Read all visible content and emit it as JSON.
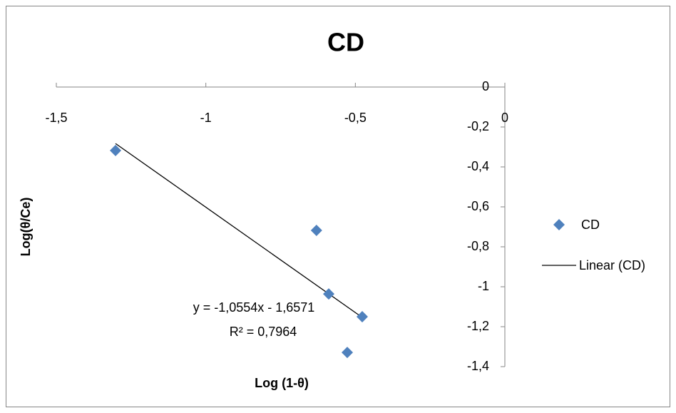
{
  "chart_data": {
    "type": "scatter",
    "title": "CD",
    "x_label": "Log (1-θ)",
    "y_label": "Log(θ/Ce)",
    "series": [
      {
        "name": "CD",
        "color": "#4f81bd",
        "x": [
          -1.302,
          -0.63,
          -0.589,
          -0.477,
          -0.527
        ],
        "values": [
          -0.318,
          -0.718,
          -1.036,
          -1.15,
          -1.329
        ]
      }
    ],
    "trendline": {
      "name": "Linear (CD)",
      "color": "#000000",
      "slope": -1.0554,
      "intercept": -1.6571,
      "equation": "y = -1,0554x - 1,6571",
      "r2_label": "R² = 0,7964"
    },
    "xlim": [
      -1.5,
      0
    ],
    "xticks": [
      {
        "value": -1.5,
        "label": "-1,5"
      },
      -1,
      {
        "value": -0.5,
        "label": "-0,5"
      },
      0
    ],
    "ylim": [
      -1.4,
      0
    ],
    "yticks": [
      0,
      {
        "value": -0.2,
        "label": "-0,2"
      },
      {
        "value": -0.4,
        "label": "-0,4"
      },
      {
        "value": -0.6,
        "label": "-0,6"
      },
      {
        "value": -0.8,
        "label": "-0,8"
      },
      -1,
      {
        "value": -1.2,
        "label": "-1,2"
      },
      {
        "value": -1.4,
        "label": "-1,4"
      }
    ],
    "grid": false,
    "legend": "right"
  }
}
